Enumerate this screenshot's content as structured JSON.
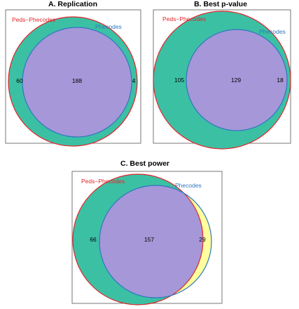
{
  "panels": [
    {
      "title": "A.   Replication",
      "set_a": "Peds−Phecodes",
      "set_b": "Phecodes",
      "only_a": "60",
      "both": "188",
      "only_b": "4"
    },
    {
      "title": "B.   Best p-value",
      "set_a": "Peds−Phecodes",
      "set_b": "Phecodes",
      "only_a": "105",
      "both": "129",
      "only_b": "18"
    },
    {
      "title": "C.   Best power",
      "set_a": "Peds−Phecodes",
      "set_b": "Phecodes",
      "only_a": "66",
      "both": "157",
      "only_b": "29"
    }
  ],
  "colors": {
    "set_a_fill": "#3cc0a4",
    "set_b_fill": "#ffff9e",
    "overlap_fill": "#a597d8",
    "set_a_border": "#e0262a",
    "set_b_border": "#2f77c0"
  }
}
